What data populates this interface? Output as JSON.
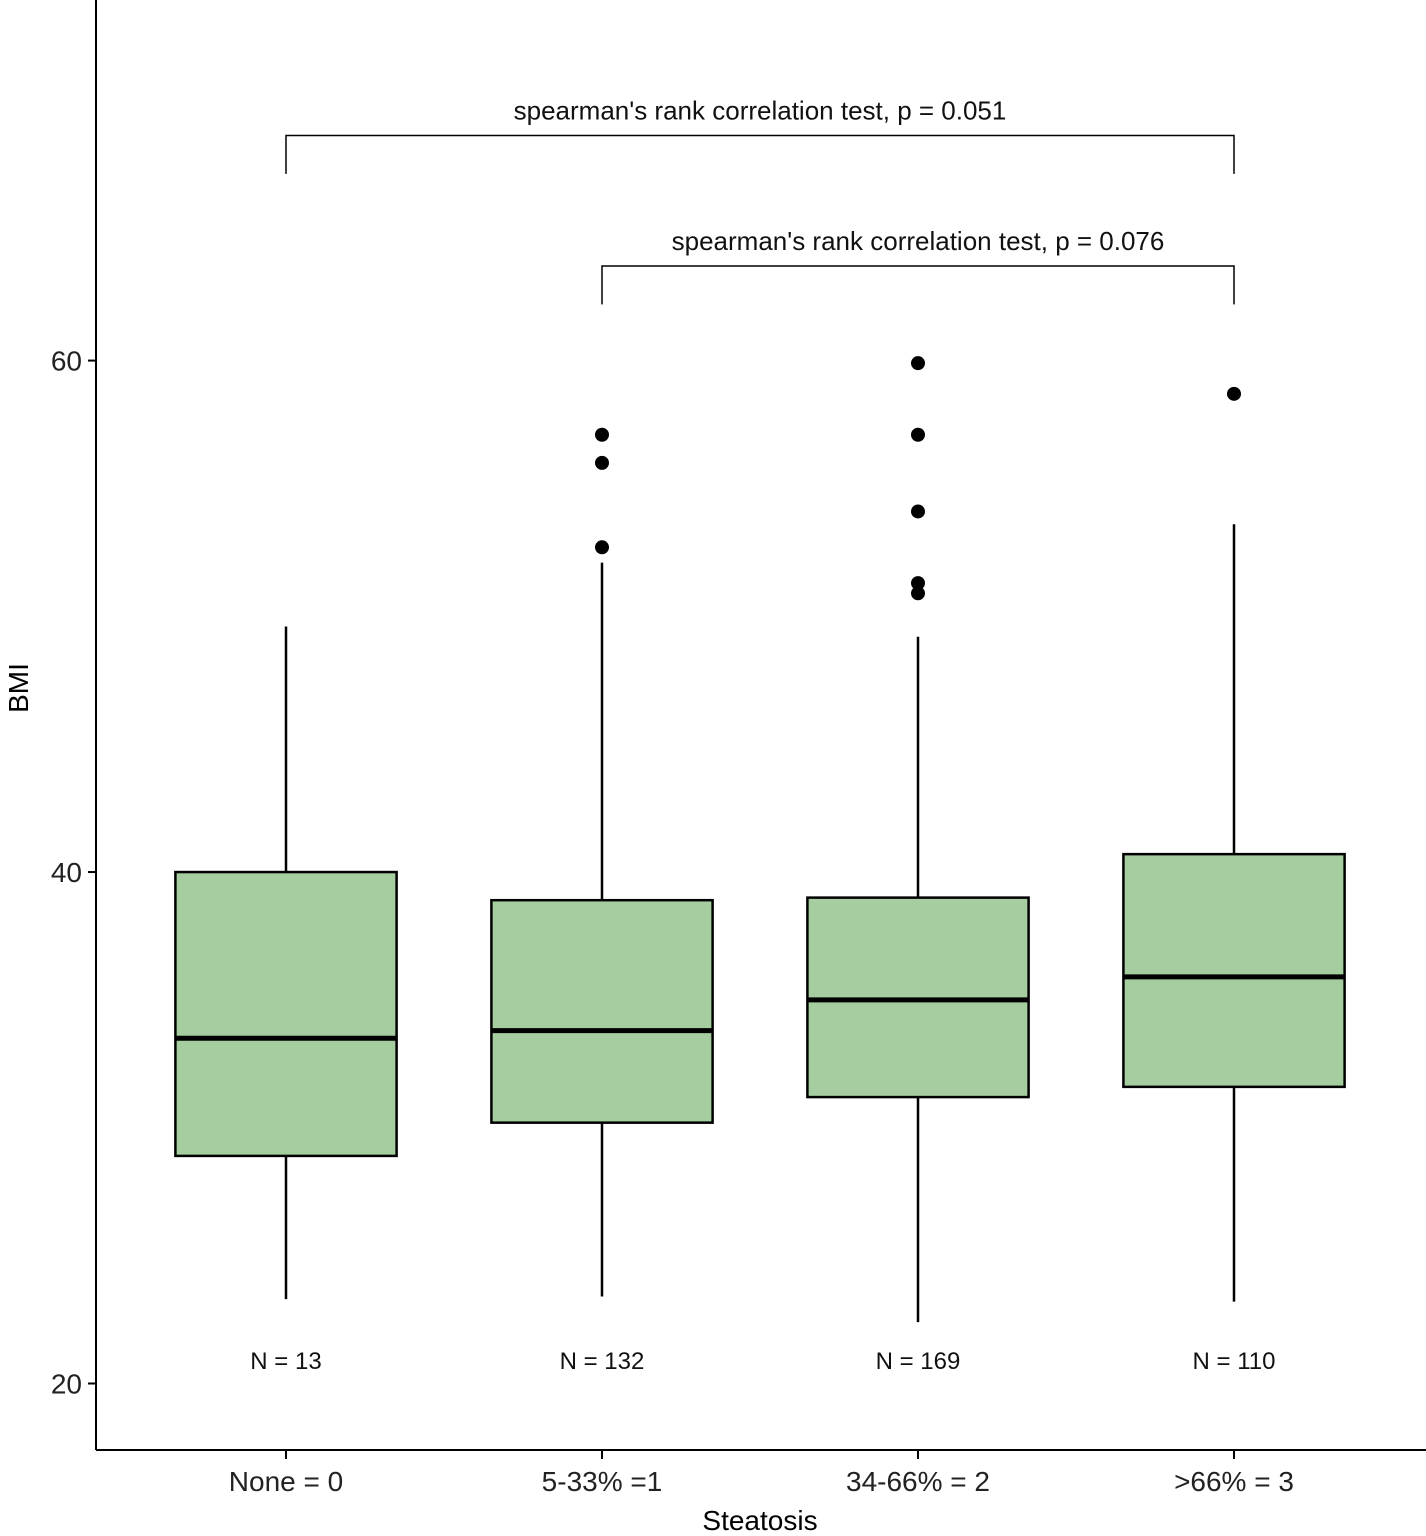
{
  "chart_data": {
    "type": "boxplot",
    "xlabel": "Steatosis",
    "ylabel": "BMI",
    "categories": [
      "None = 0",
      "5-33% =1",
      "34-66% = 2",
      ">66% = 3"
    ],
    "ylim": [
      17.4,
      74.1
    ],
    "yticks": [
      20,
      40,
      60
    ],
    "yticklabels": [
      "20",
      "40",
      "60"
    ],
    "grid": false,
    "box_fill": "#a5cd9f",
    "boxes": [
      {
        "category": "None = 0",
        "whisker_low": 23.3,
        "q1": 28.9,
        "median": 33.5,
        "q3": 40.0,
        "whisker_high": 49.6,
        "outliers": [],
        "n_label": "N = 13"
      },
      {
        "category": "5-33% =1",
        "whisker_low": 23.4,
        "q1": 30.2,
        "median": 33.8,
        "q3": 38.9,
        "whisker_high": 52.1,
        "outliers": [
          57.1,
          56.0,
          52.7
        ],
        "n_label": "N = 132"
      },
      {
        "category": "34-66% = 2",
        "whisker_low": 22.4,
        "q1": 31.2,
        "median": 35.0,
        "q3": 39.0,
        "whisker_high": 49.2,
        "outliers": [
          59.9,
          57.1,
          54.1,
          51.3,
          50.9
        ],
        "n_label": "N = 169"
      },
      {
        "category": ">66% = 3",
        "whisker_low": 23.2,
        "q1": 31.6,
        "median": 35.9,
        "q3": 40.7,
        "whisker_high": 53.6,
        "outliers": [
          58.7
        ],
        "n_label": "N = 110"
      }
    ],
    "annotations": [
      {
        "from": "None = 0",
        "to": ">66% = 3",
        "text": "spearman's rank correlation test, p = 0.051",
        "bracket_y": 68.8,
        "tip_y": 67.3
      },
      {
        "from": "5-33% =1",
        "to": ">66% = 3",
        "text": "spearman's rank correlation test, p = 0.076",
        "bracket_y": 63.7,
        "tip_y": 62.2
      }
    ]
  }
}
